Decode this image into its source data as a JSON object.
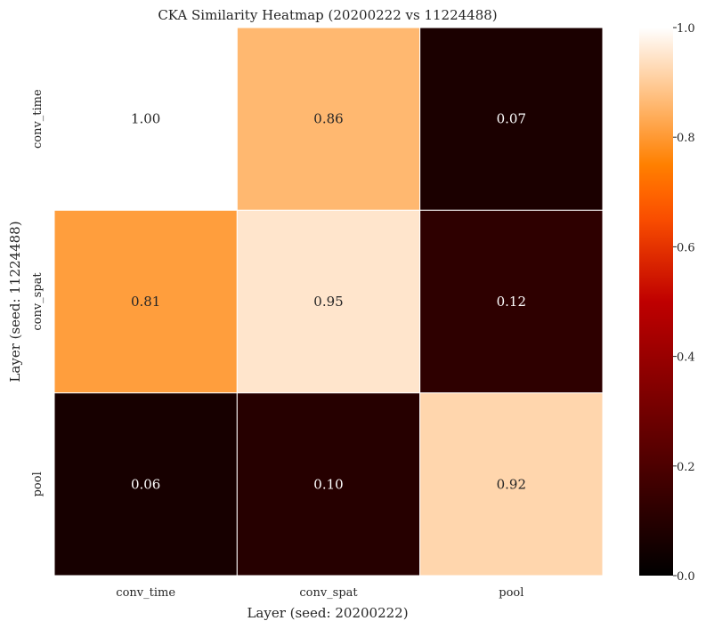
{
  "chart_data": {
    "type": "heatmap",
    "title": "CKA Similarity Heatmap (20200222 vs 11224488)",
    "xlabel": "Layer (seed: 20200222)",
    "ylabel": "Layer (seed: 11224488)",
    "x_categories": [
      "conv_time",
      "conv_spat",
      "pool"
    ],
    "y_categories": [
      "conv_time",
      "conv_spat",
      "pool"
    ],
    "values": [
      [
        1.0,
        0.86,
        0.07
      ],
      [
        0.81,
        0.95,
        0.12
      ],
      [
        0.06,
        0.1,
        0.92
      ]
    ],
    "value_format": "2 decimals",
    "colormap": "gist_heat",
    "vmin": 0.0,
    "vmax": 1.0,
    "colorbar_ticks": [
      0.0,
      0.2,
      0.4,
      0.6,
      0.8,
      1.0
    ],
    "colorbar_tick_labels": [
      "0.0",
      "0.2",
      "0.4",
      "0.6",
      "0.8",
      "1.0"
    ],
    "colors": {
      "cell_border": "#ffffff",
      "text_dark": "#262626",
      "text_light": "#ffffff"
    }
  }
}
